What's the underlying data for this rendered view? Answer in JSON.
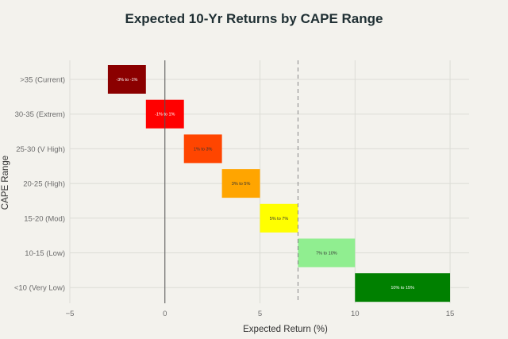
{
  "chart_data": {
    "type": "bar",
    "orientation": "horizontal-floating",
    "title": "Expected 10-Yr Returns by CAPE Range",
    "xlabel": "Expected Return (%)",
    "ylabel": "CAPE Range",
    "xlim": [
      -5,
      16
    ],
    "xticks": [
      -5,
      0,
      5,
      10,
      15
    ],
    "grid": true,
    "reference_lines": [
      {
        "x": 0,
        "style": "solid"
      },
      {
        "x": 7,
        "style": "dashed"
      }
    ],
    "bars": [
      {
        "category": ">35 (Current)",
        "start": -3,
        "end": -1,
        "label": "-3% to -1%",
        "color": "#8b0000"
      },
      {
        "category": "30-35 (Extrem)",
        "start": -1,
        "end": 1,
        "label": "-1% to 1%",
        "color": "#ff0000"
      },
      {
        "category": "25-30 (V High)",
        "start": 1,
        "end": 3,
        "label": "1% to 3%",
        "color": "#ff4500"
      },
      {
        "category": "20-25 (High)",
        "start": 3,
        "end": 5,
        "label": "3% to 5%",
        "color": "#ffa500"
      },
      {
        "category": "15-20 (Mod)",
        "start": 5,
        "end": 7,
        "label": "5% to 7%",
        "color": "#ffff00"
      },
      {
        "category": "10-15 (Low)",
        "start": 7,
        "end": 10,
        "label": "7% to 10%",
        "color": "#90ee90"
      },
      {
        "category": "<10 (Very Low)",
        "start": 10,
        "end": 15,
        "label": "10% to 15%",
        "color": "#008000"
      }
    ]
  }
}
